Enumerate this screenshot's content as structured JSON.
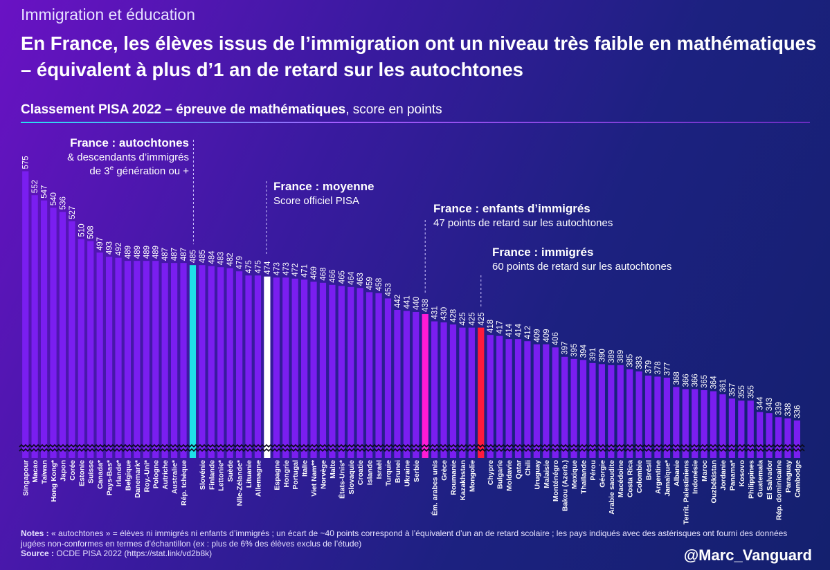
{
  "supertitle": "Immigration et éducation",
  "title": "En France, les élèves issus de l’immigration ont un niveau très faible en mathématiques – équivalent à plus d’1 an de retard sur les autochtones",
  "subtitle": {
    "bold": "Classement PISA 2022 – épreuve de mathématiques",
    "rest": ", score en points"
  },
  "notes": {
    "label": "Notes :",
    "text": " « autochtones » = élèves ni immigrés ni enfants d’immigrés ; un écart de ~40 points correspond à l’équivalent d’un an de retard scolaire ; les pays indiqués avec des astérisques ont fourni des données jugées non-conformes en termes d’échantillon (ex : plus de 6% des élèves exclus de l’étude)",
    "source_label": "Source :",
    "source_text": " OCDE PISA 2022 (https://stat.link/vd2b8k)"
  },
  "handle": "@Marc_Vanguard",
  "colors": {
    "bar": "#7a1ef0",
    "autochtones": "#1fe0e8",
    "moyenne": "#ffffff",
    "enfants": "#ff1ad6",
    "immigres": "#ff1a3c"
  },
  "chart_data": {
    "type": "bar",
    "title": "Classement PISA 2022 – épreuve de mathématiques",
    "ylabel": "score en points",
    "ylim": [
      300,
      580
    ],
    "axis_break": true,
    "categories": [
      "Singapour",
      "Macao",
      "Taïwan",
      "Hong Kong*",
      "Japon",
      "Corée",
      "Estonie",
      "Suisse",
      "Canada*",
      "Pays-Bas*",
      "Irlande*",
      "Belgique",
      "Danemark*",
      "Roy.-Uni*",
      "Pologne",
      "Autriche",
      "Australie*",
      "Rép. tchèque",
      "France : autochtones",
      "Slovénie",
      "Finlande",
      "Lettonie*",
      "Suède",
      "Nlle-Zélande*",
      "Lituanie",
      "Allemagne",
      "France : moyenne",
      "Espagne",
      "Hongrie",
      "Portugal",
      "Italie",
      "Viet Nam**",
      "Norvège",
      "Malte",
      "États-Unis*",
      "Slovaquie",
      "Croatie",
      "Islande",
      "Israël",
      "Turquie",
      "Brunei",
      "Ukraine",
      "Serbie",
      "France : enfants d’immigrés",
      "Ém. arabes unis",
      "Grèce",
      "Roumanie",
      "Kazakhstan",
      "Mongolie",
      "France : immigrés",
      "Chypre",
      "Bulgarie",
      "Moldavie",
      "Qatar",
      "Chili",
      "Uruguay",
      "Malaisie",
      "Monténégro",
      "Bakou (Azerb.)",
      "Mexique",
      "Thaïlande",
      "Pérou",
      "Géorgie",
      "Arabie saoudite",
      "Macédoine",
      "Costa Rica",
      "Colombie",
      "Brésil",
      "Argentine",
      "Jamaïque*",
      "Albanie",
      "Territ. Palestiniens",
      "Indonésie",
      "Maroc",
      "Ouzbékistan",
      "Jordanie",
      "Panama*",
      "Kosovo",
      "Philippines",
      "Guatemala",
      "El Salvador",
      "Rép. dominicaine",
      "Paraguay",
      "Cambodge"
    ],
    "values": [
      575,
      552,
      547,
      540,
      536,
      527,
      510,
      508,
      497,
      493,
      492,
      489,
      489,
      489,
      489,
      487,
      487,
      487,
      485,
      485,
      484,
      483,
      482,
      479,
      475,
      475,
      474,
      473,
      473,
      472,
      471,
      469,
      468,
      466,
      465,
      464,
      463,
      459,
      458,
      453,
      442,
      441,
      440,
      438,
      431,
      430,
      428,
      425,
      425,
      425,
      418,
      417,
      414,
      414,
      412,
      409,
      409,
      406,
      397,
      395,
      394,
      391,
      390,
      389,
      389,
      385,
      383,
      379,
      378,
      377,
      368,
      366,
      366,
      365,
      364,
      361,
      357,
      355,
      355,
      344,
      343,
      339,
      338,
      336
    ],
    "highlights": [
      {
        "index": 18,
        "key": "autochtones",
        "label": "France : autochtones",
        "lines": [
          "& descendants d’immigrés",
          "de 3",
          "e",
          " génération ou +"
        ]
      },
      {
        "index": 26,
        "key": "moyenne",
        "label": "France : moyenne",
        "lines": [
          "Score officiel PISA"
        ]
      },
      {
        "index": 43,
        "key": "enfants",
        "label": "France : enfants d’immigrés",
        "lines": [
          "47 points de retard sur les autochtones"
        ]
      },
      {
        "index": 49,
        "key": "immigres",
        "label": "France : immigrés",
        "lines": [
          "60 points de retard sur les autochtones"
        ]
      }
    ]
  }
}
